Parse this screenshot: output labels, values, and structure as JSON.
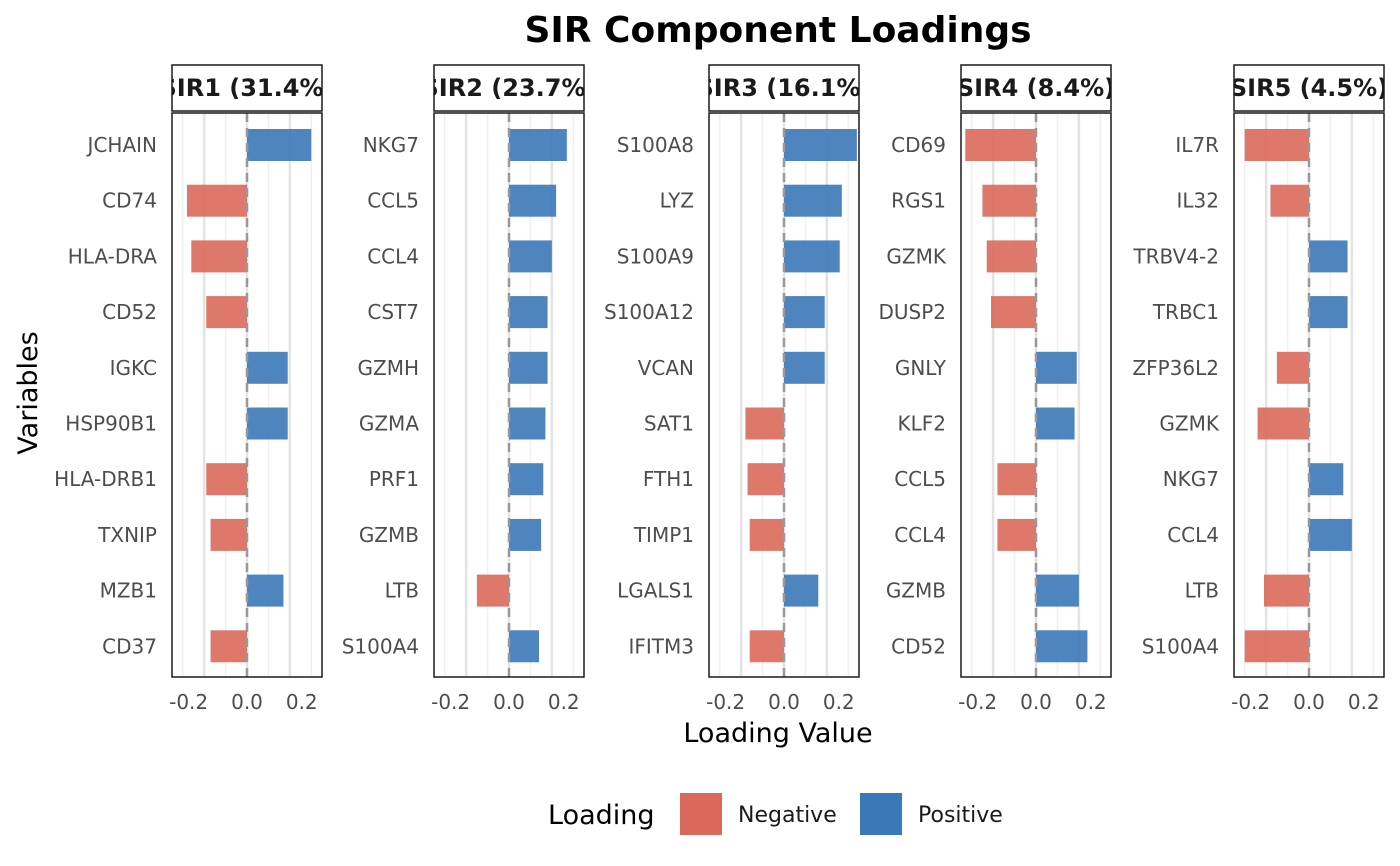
{
  "chart_data": {
    "type": "bar",
    "orientation": "horizontal",
    "title": "SIR Component Loadings",
    "xlabel": "Loading Value",
    "ylabel": "Variables",
    "xlim": [
      -0.35,
      0.35
    ],
    "xticks": [
      -0.2,
      0.0,
      0.2
    ],
    "xtick_labels": [
      "-0.2",
      "0.0",
      "0.2"
    ],
    "grid": true,
    "legend": {
      "title": "Loading",
      "position": "bottom",
      "entries": [
        {
          "label": "Negative",
          "color": "#D9695B"
        },
        {
          "label": "Positive",
          "color": "#3B78B8"
        }
      ]
    },
    "colors": {
      "negative": "#D9695B",
      "positive": "#3B78B8",
      "zero_line": "#999999"
    },
    "panels": [
      {
        "strip": "SIR1 (31.4%)",
        "variables": [
          "JCHAIN",
          "CD74",
          "HLA-DRA",
          "CD52",
          "IGKC",
          "HSP90B1",
          "HLA-DRB1",
          "TXNIP",
          "MZB1",
          "CD37"
        ],
        "values": [
          0.3,
          -0.28,
          -0.26,
          -0.19,
          0.19,
          0.19,
          -0.19,
          -0.17,
          0.17,
          -0.17
        ]
      },
      {
        "strip": "SIR2 (23.7%)",
        "variables": [
          "NKG7",
          "CCL5",
          "CCL4",
          "CST7",
          "GZMH",
          "GZMA",
          "PRF1",
          "GZMB",
          "LTB",
          "S100A4"
        ],
        "values": [
          0.27,
          0.22,
          0.2,
          0.18,
          0.18,
          0.17,
          0.16,
          0.15,
          -0.15,
          0.14
        ]
      },
      {
        "strip": "SIR3 (16.1%)",
        "variables": [
          "S100A8",
          "LYZ",
          "S100A9",
          "S100A12",
          "VCAN",
          "SAT1",
          "FTH1",
          "TIMP1",
          "LGALS1",
          "IFITM3"
        ],
        "values": [
          0.34,
          0.27,
          0.26,
          0.19,
          0.19,
          -0.18,
          -0.17,
          -0.16,
          0.16,
          -0.16
        ]
      },
      {
        "strip": "SIR4 (8.4%)",
        "variables": [
          "CD69",
          "RGS1",
          "GZMK",
          "DUSP2",
          "GNLY",
          "KLF2",
          "CCL5",
          "CCL4",
          "GZMB",
          "CD52"
        ],
        "values": [
          -0.33,
          -0.25,
          -0.23,
          -0.21,
          0.19,
          0.18,
          -0.18,
          -0.18,
          0.2,
          0.24
        ]
      },
      {
        "strip": "SIR5 (4.5%)",
        "variables": [
          "IL7R",
          "IL32",
          "TRBV4-2",
          "TRBC1",
          "ZFP36L2",
          "GZMK",
          "NKG7",
          "CCL4",
          "LTB",
          "S100A4"
        ],
        "values": [
          -0.3,
          -0.18,
          0.18,
          0.18,
          -0.15,
          -0.24,
          0.16,
          0.2,
          -0.21,
          -0.3
        ]
      }
    ]
  }
}
